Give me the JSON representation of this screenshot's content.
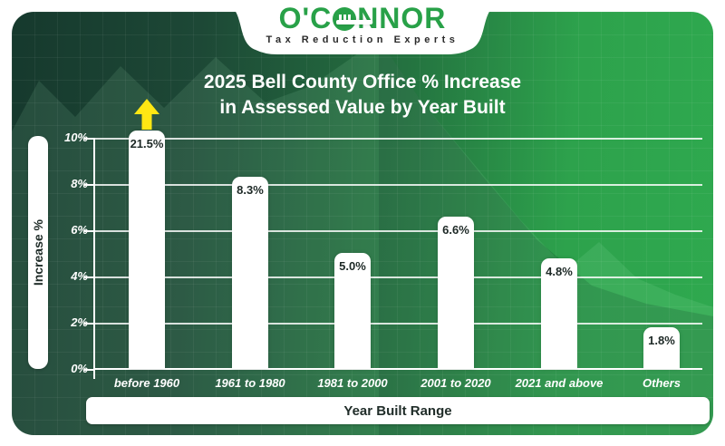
{
  "logo": {
    "brand_left": "O'C",
    "brand_right": "NNOR",
    "tagline": "Tax Reduction Experts"
  },
  "title": {
    "line1": "2025 Bell County Office % Increase",
    "line2": "in Assessed Value by Year Built"
  },
  "chart_data": {
    "type": "bar",
    "title": "2025 Bell County Office % Increase in Assessed Value by Year Built",
    "categories": [
      "before 1960",
      "1961 to 1980",
      "1981 to 2000",
      "2001 to 2020",
      "2021 and above",
      "Others"
    ],
    "values": [
      21.5,
      8.3,
      5.0,
      6.6,
      4.8,
      1.8
    ],
    "value_labels": [
      "21.5%",
      "8.3%",
      "5.0%",
      "6.6%",
      "4.8%",
      "1.8%"
    ],
    "xlabel": "Year Built Range",
    "ylabel": "Increase %",
    "y_ticks": [
      "10%",
      "8%",
      "6%",
      "4%",
      "2%",
      "0%"
    ],
    "ylim": [
      0,
      10
    ],
    "grid": true,
    "legend": "none",
    "bar_color": "#ffffff",
    "overflow_indicator": {
      "bar_index": 0,
      "style": "yellow-up-arrow",
      "color": "#ffe713",
      "note": "first bar exceeds axis max and is clipped"
    }
  },
  "colors": {
    "canvas_dark": "#16392d",
    "canvas_bright": "#2fa94f",
    "brand_green": "#28a148",
    "bar_label_text": "#1d2926",
    "tick_text": "#ffffff",
    "arrow_yellow": "#ffe713"
  }
}
